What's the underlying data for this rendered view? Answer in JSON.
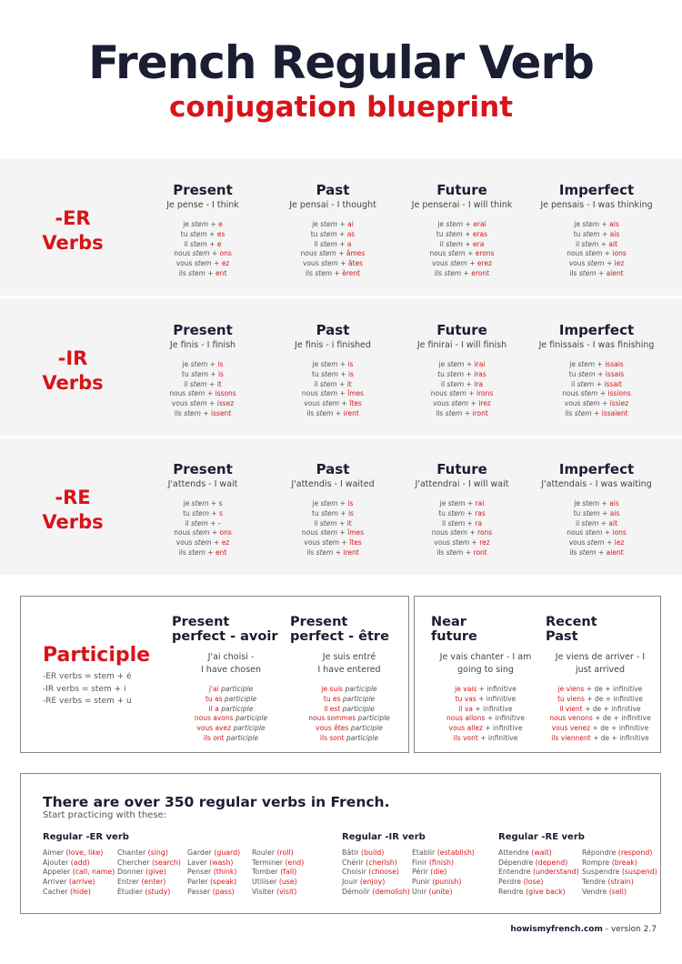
{
  "title": "French Regular Verb",
  "subtitle": "conjugation blueprint",
  "groups": [
    {
      "label": "-ER\nVerbs",
      "tenses": [
        {
          "name": "Present",
          "example": "Je pense - I think",
          "lines": [
            [
              "je",
              "e"
            ],
            [
              "tu",
              "es"
            ],
            [
              "il",
              "e"
            ],
            [
              "nous",
              "ons"
            ],
            [
              "vous",
              "ez"
            ],
            [
              "ils",
              "ent"
            ]
          ]
        },
        {
          "name": "Past",
          "example": "Je pensai - I thought",
          "lines": [
            [
              "je",
              "ai"
            ],
            [
              "tu",
              "as"
            ],
            [
              "il",
              "a"
            ],
            [
              "nous",
              "âmes"
            ],
            [
              "vous",
              "âtes"
            ],
            [
              "ils",
              "èrent"
            ]
          ]
        },
        {
          "name": "Future",
          "example": "Je penserai - I will think",
          "lines": [
            [
              "je",
              "erai"
            ],
            [
              "tu",
              "eras"
            ],
            [
              "il",
              "era"
            ],
            [
              "nous",
              "erons"
            ],
            [
              "vous",
              "erez"
            ],
            [
              "ils",
              "eront"
            ]
          ]
        },
        {
          "name": "Imperfect",
          "example": "Je pensais - I was thinking",
          "lines": [
            [
              "je",
              "ais"
            ],
            [
              "tu",
              "ais"
            ],
            [
              "il",
              "ait"
            ],
            [
              "nous",
              "ions"
            ],
            [
              "vous",
              "iez"
            ],
            [
              "ils",
              "aient"
            ]
          ]
        }
      ]
    },
    {
      "label": "-IR\nVerbs",
      "tenses": [
        {
          "name": "Present",
          "example": "Je finis - I finish",
          "lines": [
            [
              "je",
              "is"
            ],
            [
              "tu",
              "is"
            ],
            [
              "il",
              "it"
            ],
            [
              "nous",
              "issons"
            ],
            [
              "vous",
              "issez"
            ],
            [
              "ils",
              "issent"
            ]
          ]
        },
        {
          "name": "Past",
          "example": "Je finis - i finished",
          "lines": [
            [
              "je",
              "is"
            ],
            [
              "tu",
              "is"
            ],
            [
              "il",
              "it"
            ],
            [
              "nous",
              "îmes"
            ],
            [
              "vous",
              "îtes"
            ],
            [
              "ils",
              "irent"
            ]
          ]
        },
        {
          "name": "Future",
          "example": "Je finirai - I will finish",
          "lines": [
            [
              "je",
              "irai"
            ],
            [
              "tu",
              "iras"
            ],
            [
              "il",
              "ira"
            ],
            [
              "nous",
              "irons"
            ],
            [
              "vous",
              "irez"
            ],
            [
              "ils",
              "iront"
            ]
          ]
        },
        {
          "name": "Imperfect",
          "example": "Je finissais - I was finishing",
          "lines": [
            [
              "je",
              "issais"
            ],
            [
              "tu",
              "issais"
            ],
            [
              "il",
              "issait"
            ],
            [
              "nous",
              "issions"
            ],
            [
              "vous",
              "issiez"
            ],
            [
              "ils",
              "issaient"
            ]
          ]
        }
      ]
    },
    {
      "label": "-RE\nVerbs",
      "tenses": [
        {
          "name": "Present",
          "example": "J'attends - I wait",
          "lines": [
            [
              "je",
              "s"
            ],
            [
              "tu",
              "s"
            ],
            [
              "il",
              "-"
            ],
            [
              "nous",
              "ons"
            ],
            [
              "vous",
              "ez"
            ],
            [
              "ils",
              "ent"
            ]
          ]
        },
        {
          "name": "Past",
          "example": "J'attendis - I waited",
          "lines": [
            [
              "je",
              "is"
            ],
            [
              "tu",
              "is"
            ],
            [
              "il",
              "it"
            ],
            [
              "nous",
              "îmes"
            ],
            [
              "vous",
              "îtes"
            ],
            [
              "ils",
              "irent"
            ]
          ]
        },
        {
          "name": "Future",
          "example": "J'attendrai - I will wait",
          "lines": [
            [
              "je",
              "rai"
            ],
            [
              "tu",
              "ras"
            ],
            [
              "il",
              "ra"
            ],
            [
              "nous",
              "rons"
            ],
            [
              "vous",
              "rez"
            ],
            [
              "ils",
              "ront"
            ]
          ]
        },
        {
          "name": "Imperfect",
          "example": "J'attendais - I was waiting",
          "lines": [
            [
              "je",
              "ais"
            ],
            [
              "tu",
              "ais"
            ],
            [
              "il",
              "ait"
            ],
            [
              "nous",
              "ions"
            ],
            [
              "vous",
              "iez"
            ],
            [
              "ils",
              "aient"
            ]
          ]
        }
      ]
    }
  ],
  "stem_word": "stem",
  "participle": {
    "title": "Participle",
    "rules": [
      "-ER verbs = stem + é",
      "-IR verbs = stem + i",
      "-RE verbs = stem + u"
    ]
  },
  "compound": [
    {
      "name": "Present\nperfect - avoir",
      "example": "J'ai choisi -\nI have chosen",
      "lines": [
        [
          "j'ai",
          "participle"
        ],
        [
          "tu as",
          "participle"
        ],
        [
          "il a",
          "participle"
        ],
        [
          "nous avons",
          "participle"
        ],
        [
          "vous avez",
          "participle"
        ],
        [
          "ils ont",
          "participle"
        ]
      ],
      "italic": true
    },
    {
      "name": "Present\nperfect - être",
      "example": "Je suis entré\nI have entered",
      "lines": [
        [
          "je suis",
          "participle"
        ],
        [
          "tu es",
          "participle"
        ],
        [
          "il est",
          "participle"
        ],
        [
          "nous sommes",
          "participle"
        ],
        [
          "vous êtes",
          "participle"
        ],
        [
          "ils sont",
          "participle"
        ]
      ],
      "italic": true
    },
    {
      "name": "Near\nfuture",
      "example": "Je vais chanter - I am\ngoing to sing",
      "lines": [
        [
          "je vais",
          "+ infinitive"
        ],
        [
          "tu vas",
          "+ infinitive"
        ],
        [
          "il va",
          "+ infinitive"
        ],
        [
          "nous allons",
          "+ infinitive"
        ],
        [
          "vous allez",
          "+ infinitive"
        ],
        [
          "ils vont",
          "+ infinitive"
        ]
      ],
      "italic": false
    },
    {
      "name": "Recent\nPast",
      "example": "Je viens de arriver - I\njust arrived",
      "lines": [
        [
          "je viens",
          "+ de + infinitive"
        ],
        [
          "tu viens",
          "+ de + infinitive"
        ],
        [
          "il vient",
          "+ de + infinitive"
        ],
        [
          "nous venons",
          "+ de + infinitive"
        ],
        [
          "vous venez",
          "+ de + infinitive"
        ],
        [
          "ils viennent",
          "+ de + infinitive"
        ]
      ],
      "italic": false
    }
  ],
  "practice": {
    "title": "There are over 350 regular verbs in French.",
    "subtitle": "Start practicing with these:",
    "groups": [
      {
        "heading": "Regular -ER verb",
        "columns": [
          [
            [
              "Aimer",
              "(love, like)"
            ],
            [
              "Ajouter",
              "(add)"
            ],
            [
              "Appeler",
              "(call, name)"
            ],
            [
              "Arriver",
              "(arrive)"
            ],
            [
              "Cacher",
              "(hide)"
            ]
          ],
          [
            [
              "Chanter",
              "(sing)"
            ],
            [
              "Chercher",
              "(search)"
            ],
            [
              "Donner",
              "(give)"
            ],
            [
              "Entrer",
              "(enter)"
            ],
            [
              "Étudier",
              "(study)"
            ]
          ],
          [
            [
              "Garder",
              "(guard)"
            ],
            [
              "Laver",
              "(wash)"
            ],
            [
              "Penser",
              "(think)"
            ],
            [
              "Parler",
              "(speak)"
            ],
            [
              "Passer",
              "(pass)"
            ]
          ],
          [
            [
              "Rouler",
              "(roll)"
            ],
            [
              "Terminer",
              "(end)"
            ],
            [
              "Tomber",
              "(fall)"
            ],
            [
              "Utiliser",
              "(use)"
            ],
            [
              "Visiter",
              "(visit)"
            ]
          ]
        ]
      },
      {
        "heading": "Regular -IR verb",
        "columns": [
          [
            [
              "Bâtir",
              "(build)"
            ],
            [
              "Chérir",
              "(cherish)"
            ],
            [
              "Choisir",
              "(choose)"
            ],
            [
              "Jouir",
              "(enjoy)"
            ],
            [
              "Démolir",
              "(demolish)"
            ]
          ],
          [
            [
              "Établir",
              "(establish)"
            ],
            [
              "Finir",
              "(finish)"
            ],
            [
              "Périr",
              "(die)"
            ],
            [
              "Punir",
              "(punish)"
            ],
            [
              "Unir",
              "(unite)"
            ]
          ]
        ]
      },
      {
        "heading": "Regular -RE verb",
        "columns": [
          [
            [
              "Attendre",
              "(wait)"
            ],
            [
              "Dépendre",
              "(depend)"
            ],
            [
              "Entendre",
              "(understand)"
            ],
            [
              "Perdre",
              "(lose)"
            ],
            [
              "Rendre",
              "(give back)"
            ]
          ],
          [
            [
              "Répondre",
              "(respond)"
            ],
            [
              "Rompre",
              "(break)"
            ],
            [
              "Suspendre",
              "(suspend)"
            ],
            [
              "Tendre",
              "(strain)"
            ],
            [
              "Vendre",
              "(sell)"
            ]
          ]
        ]
      }
    ]
  },
  "footer": {
    "site": "howismyfrench.com",
    "version": "- version 2.7"
  },
  "colors": {
    "accent": "#d7141a",
    "heading": "#1b1d33",
    "band": "#f4f4f5"
  }
}
